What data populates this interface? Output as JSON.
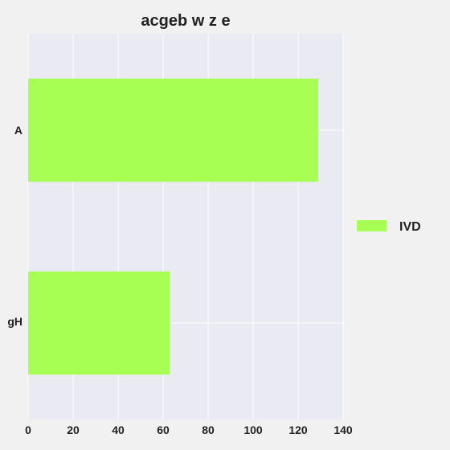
{
  "chart_data": {
    "type": "bar",
    "orientation": "horizontal",
    "title": "acgeb w z e",
    "xlabel": "",
    "ylabel": "",
    "categories": [
      "A",
      "gH"
    ],
    "series": [
      {
        "name": "IVD",
        "values": [
          129,
          63
        ],
        "color": "#a6ff52"
      }
    ],
    "xlim": [
      0,
      140
    ],
    "xticks": [
      0,
      20,
      40,
      60,
      80,
      100,
      120,
      140
    ],
    "grid": true,
    "legend_position": "right",
    "plot_background": "#eaeaf2",
    "page_background": "#f1f1f1",
    "grid_color": "#ffffff"
  }
}
